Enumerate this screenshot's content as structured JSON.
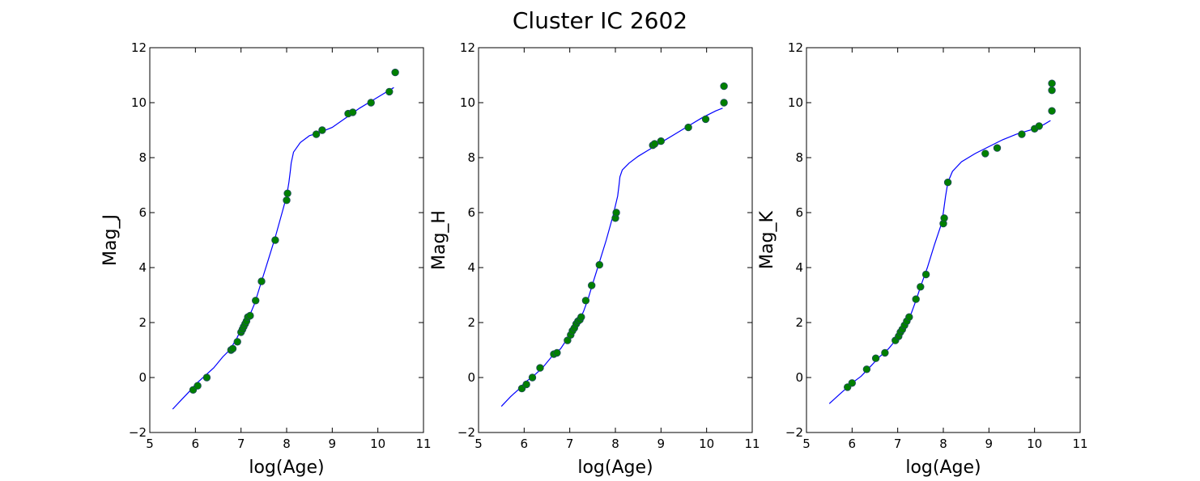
{
  "title": "Cluster IC 2602",
  "colors": {
    "model": "#0000ff",
    "points": "#008000",
    "point_edge": "#1f4a5e"
  },
  "chart_data": [
    {
      "type": "scatter",
      "xlabel": "log(Age)",
      "ylabel": "Mag_J",
      "xlim": [
        5,
        11
      ],
      "ylim": [
        -2,
        12
      ],
      "xticks": [
        5,
        6,
        7,
        8,
        9,
        10,
        11
      ],
      "yticks": [
        -2,
        0,
        2,
        4,
        6,
        8,
        10,
        12
      ],
      "grid": false,
      "line": {
        "x": [
          5.5,
          5.7,
          5.9,
          6.0,
          6.2,
          6.4,
          6.6,
          6.75,
          6.9,
          7.0,
          7.1,
          7.2,
          7.3,
          7.45,
          7.6,
          7.75,
          7.9,
          8.0,
          8.05,
          8.08,
          8.1,
          8.15,
          8.3,
          8.5,
          8.7,
          9.0,
          9.3,
          9.6,
          9.9,
          10.2,
          10.35
        ],
        "y": [
          -1.15,
          -0.8,
          -0.45,
          -0.25,
          0.05,
          0.35,
          0.75,
          1.0,
          1.4,
          1.75,
          2.05,
          2.3,
          2.7,
          3.5,
          4.3,
          5.1,
          6.0,
          6.6,
          7.1,
          7.5,
          7.8,
          8.2,
          8.55,
          8.8,
          8.9,
          9.1,
          9.45,
          9.8,
          10.1,
          10.4,
          10.55
        ]
      },
      "points": {
        "x": [
          5.95,
          6.05,
          6.25,
          6.78,
          6.82,
          6.92,
          7.0,
          7.03,
          7.06,
          7.09,
          7.12,
          7.15,
          7.2,
          7.32,
          7.45,
          7.75,
          8.0,
          8.02,
          8.65,
          8.78,
          9.35,
          9.45,
          9.85,
          10.25,
          10.38
        ],
        "y": [
          -0.45,
          -0.3,
          0.0,
          1.0,
          1.05,
          1.3,
          1.65,
          1.75,
          1.85,
          1.95,
          2.05,
          2.2,
          2.25,
          2.8,
          3.5,
          5.0,
          6.45,
          6.7,
          8.85,
          9.0,
          9.6,
          9.65,
          10.0,
          10.4,
          11.1
        ]
      }
    },
    {
      "type": "scatter",
      "xlabel": "log(Age)",
      "ylabel": "Mag_H",
      "xlim": [
        5,
        11
      ],
      "ylim": [
        -2,
        12
      ],
      "xticks": [
        5,
        6,
        7,
        8,
        9,
        10,
        11
      ],
      "yticks": [
        -2,
        0,
        2,
        4,
        6,
        8,
        10,
        12
      ],
      "grid": false,
      "line": {
        "x": [
          5.5,
          5.7,
          5.9,
          6.0,
          6.2,
          6.4,
          6.6,
          6.8,
          7.0,
          7.1,
          7.2,
          7.3,
          7.4,
          7.5,
          7.65,
          7.8,
          7.95,
          8.05,
          8.08,
          8.1,
          8.15,
          8.3,
          8.5,
          8.7,
          8.85,
          9.0,
          9.3,
          9.6,
          9.9,
          10.2,
          10.35
        ],
        "y": [
          -1.05,
          -0.7,
          -0.4,
          -0.2,
          0.05,
          0.35,
          0.75,
          1.05,
          1.55,
          1.8,
          2.05,
          2.4,
          2.85,
          3.4,
          4.2,
          5.0,
          5.9,
          6.6,
          7.0,
          7.3,
          7.55,
          7.8,
          8.05,
          8.25,
          8.4,
          8.55,
          8.85,
          9.15,
          9.45,
          9.7,
          9.8
        ]
      },
      "points": {
        "x": [
          5.95,
          6.05,
          6.18,
          6.35,
          6.65,
          6.72,
          6.95,
          7.02,
          7.06,
          7.1,
          7.14,
          7.18,
          7.22,
          7.25,
          7.35,
          7.48,
          7.65,
          8.0,
          8.02,
          8.82,
          8.86,
          9.0,
          9.6,
          9.98,
          10.38,
          10.38
        ],
        "y": [
          -0.4,
          -0.25,
          0.0,
          0.35,
          0.85,
          0.9,
          1.35,
          1.55,
          1.7,
          1.8,
          1.95,
          2.05,
          2.1,
          2.2,
          2.8,
          3.35,
          4.1,
          5.8,
          6.0,
          8.45,
          8.5,
          8.6,
          9.1,
          9.4,
          10.0,
          10.6
        ]
      }
    },
    {
      "type": "scatter",
      "xlabel": "log(Age)",
      "ylabel": "Mag_K",
      "xlim": [
        5,
        11
      ],
      "ylim": [
        -2,
        12
      ],
      "xticks": [
        5,
        6,
        7,
        8,
        9,
        10,
        11
      ],
      "yticks": [
        -2,
        0,
        2,
        4,
        6,
        8,
        10,
        12
      ],
      "grid": false,
      "line": {
        "x": [
          5.5,
          5.7,
          5.9,
          6.0,
          6.2,
          6.4,
          6.6,
          6.8,
          7.0,
          7.1,
          7.2,
          7.3,
          7.4,
          7.5,
          7.65,
          7.8,
          7.95,
          8.0,
          8.05,
          8.1,
          8.2,
          8.4,
          8.7,
          9.0,
          9.3,
          9.6,
          9.9,
          10.2,
          10.35
        ],
        "y": [
          -0.95,
          -0.65,
          -0.35,
          -0.2,
          0.05,
          0.4,
          0.75,
          1.05,
          1.45,
          1.75,
          2.0,
          2.35,
          2.8,
          3.3,
          4.0,
          4.8,
          5.55,
          6.0,
          6.6,
          7.1,
          7.5,
          7.85,
          8.15,
          8.4,
          8.65,
          8.85,
          9.0,
          9.2,
          9.35
        ]
      },
      "points": {
        "x": [
          5.9,
          6.0,
          6.32,
          6.52,
          6.72,
          6.95,
          7.02,
          7.06,
          7.1,
          7.15,
          7.2,
          7.25,
          7.4,
          7.5,
          7.62,
          8.0,
          8.02,
          8.1,
          8.92,
          9.18,
          9.72,
          10.0,
          10.1,
          10.38,
          10.38,
          10.38
        ],
        "y": [
          -0.35,
          -0.2,
          0.3,
          0.7,
          0.9,
          1.35,
          1.5,
          1.65,
          1.75,
          1.9,
          2.05,
          2.2,
          2.85,
          3.3,
          3.75,
          5.6,
          5.8,
          7.1,
          8.15,
          8.35,
          8.85,
          9.05,
          9.15,
          9.7,
          10.45,
          10.7
        ]
      }
    }
  ]
}
